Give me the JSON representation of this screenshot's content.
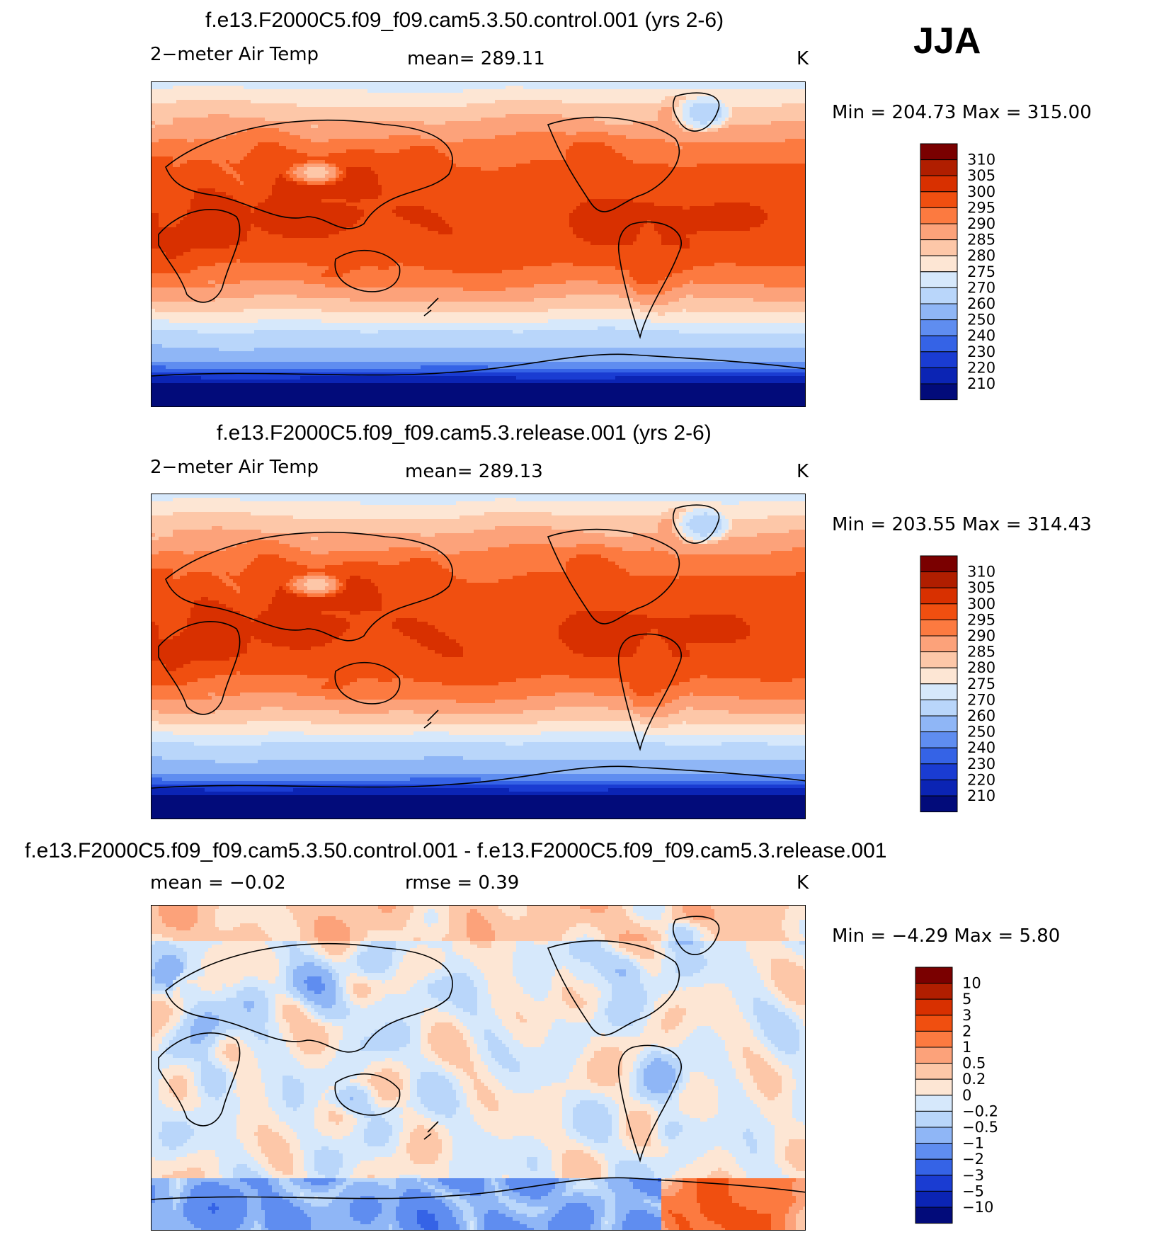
{
  "season": "JJA",
  "panels": [
    {
      "title": "f.e13.F2000C5.f09_f09.cam5.3.50.control.001 (yrs 2-6)",
      "left_label": "2−meter Air Temp",
      "mid_label": "mean=  289.11",
      "units": "K",
      "minmax": "Min  =  204.73  Max  =  315.00"
    },
    {
      "title": "f.e13.F2000C5.f09_f09.cam5.3.release.001 (yrs 2-6)",
      "left_label": "2−meter Air Temp",
      "mid_label": "mean=  289.13",
      "units": "K",
      "minmax": "Min  =  203.55  Max  =  314.43"
    },
    {
      "title": "f.e13.F2000C5.f09_f09.cam5.3.50.control.001 - f.e13.F2000C5.f09_f09.cam5.3.release.001",
      "left_label": "mean  =    −0.02",
      "mid_label": "rmse  =     0.39",
      "units": "K",
      "minmax": "Min  =    −4.29  Max  =     5.80"
    }
  ],
  "chart_data": [
    {
      "type": "heatmap",
      "title": "f.e13.F2000C5.f09_f09.cam5.3.50.control.001 (yrs 2-6)",
      "variable": "2−meter Air Temp",
      "units": "K",
      "mean": 289.11,
      "min": 204.73,
      "max": 315.0,
      "colorbar_levels": [
        "310",
        "305",
        "300",
        "295",
        "290",
        "285",
        "280",
        "275",
        "270",
        "260",
        "250",
        "240",
        "230",
        "220",
        "210"
      ],
      "colors": [
        "#7a0000",
        "#b01e00",
        "#d83000",
        "#f04f10",
        "#fc7a40",
        "#fca27a",
        "#fdc7a8",
        "#fde6d4",
        "#d6e8fb",
        "#b9d6fa",
        "#8fb6f6",
        "#5f8df0",
        "#3563e6",
        "#1a3cd2",
        "#0b24b4",
        "#020b7a"
      ]
    },
    {
      "type": "heatmap",
      "title": "f.e13.F2000C5.f09_f09.cam5.3.release.001 (yrs 2-6)",
      "variable": "2−meter Air Temp",
      "units": "K",
      "mean": 289.13,
      "min": 203.55,
      "max": 314.43,
      "colorbar_levels": [
        "310",
        "305",
        "300",
        "295",
        "290",
        "285",
        "280",
        "275",
        "270",
        "260",
        "250",
        "240",
        "230",
        "220",
        "210"
      ],
      "colors": [
        "#7a0000",
        "#b01e00",
        "#d83000",
        "#f04f10",
        "#fc7a40",
        "#fca27a",
        "#fdc7a8",
        "#fde6d4",
        "#d6e8fb",
        "#b9d6fa",
        "#8fb6f6",
        "#5f8df0",
        "#3563e6",
        "#1a3cd2",
        "#0b24b4",
        "#020b7a"
      ]
    },
    {
      "type": "heatmap",
      "title": "f.e13.F2000C5.f09_f09.cam5.3.50.control.001 - f.e13.F2000C5.f09_f09.cam5.3.release.001",
      "units": "K",
      "mean": -0.02,
      "rmse": 0.39,
      "min": -4.29,
      "max": 5.8,
      "colorbar_levels": [
        "10",
        "5",
        "3",
        "2",
        "1",
        "0.5",
        "0.2",
        "0",
        "−0.2",
        "−0.5",
        "−1",
        "−2",
        "−3",
        "−5",
        "−10"
      ],
      "colors": [
        "#7a0000",
        "#b01e00",
        "#d83000",
        "#f04f10",
        "#fc7a40",
        "#fca27a",
        "#fdc7a8",
        "#fde6d4",
        "#d6e8fb",
        "#b9d6fa",
        "#8fb6f6",
        "#5f8df0",
        "#3563e6",
        "#1a3cd2",
        "#0b24b4",
        "#020b7a"
      ]
    }
  ]
}
